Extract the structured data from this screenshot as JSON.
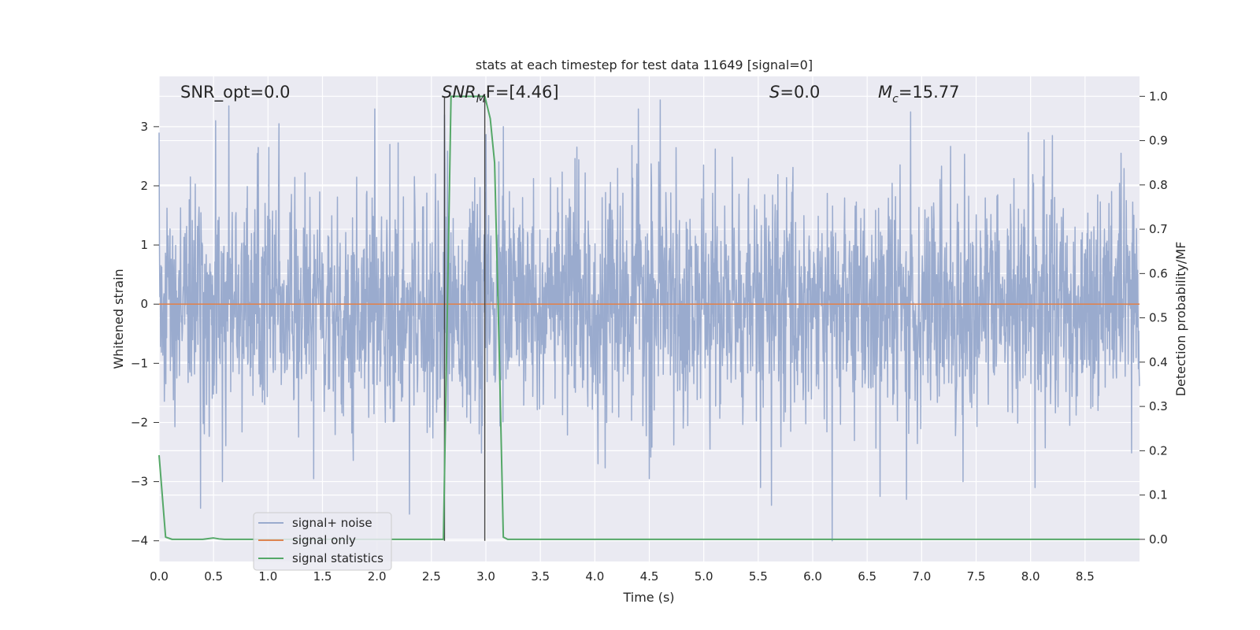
{
  "chart_data": {
    "type": "line",
    "title": "stats at each timestep for test data 11649 [signal=0]",
    "xlabel": "Time (s)",
    "ylabel": "Whitened strain",
    "y2label": "Detection probability/MF",
    "xlim": [
      0,
      9
    ],
    "ylim": [
      -4.35,
      3.85
    ],
    "y2lim": [
      -0.05,
      1.045
    ],
    "x_ticks": [
      0.0,
      0.5,
      1.0,
      1.5,
      2.0,
      2.5,
      3.0,
      3.5,
      4.0,
      4.5,
      5.0,
      5.5,
      6.0,
      6.5,
      7.0,
      7.5,
      8.0,
      8.5
    ],
    "x_tick_labels": [
      "0.0",
      "0.5",
      "1.0",
      "1.5",
      "2.0",
      "2.5",
      "3.0",
      "3.5",
      "4.0",
      "4.5",
      "5.0",
      "5.5",
      "6.0",
      "6.5",
      "7.0",
      "7.5",
      "8.0",
      "8.5"
    ],
    "y_ticks": [
      3,
      2,
      1,
      0,
      -1,
      -2,
      -3,
      -4
    ],
    "y_tick_labels": [
      "3",
      "2",
      "1",
      "0",
      "−1",
      "−2",
      "−3",
      "−4"
    ],
    "y2_ticks": [
      1.0,
      0.9,
      0.8,
      0.7,
      0.6,
      0.5,
      0.4,
      0.3,
      0.2,
      0.1,
      0.0
    ],
    "y2_tick_labels": [
      "1.0",
      "0.9",
      "0.8",
      "0.7",
      "0.6",
      "0.5",
      "0.4",
      "0.3",
      "0.2",
      "0.1",
      "0.0"
    ],
    "grid": true,
    "legend_position": "lower-left",
    "annotations": {
      "snr_opt": "SNR_opt=0.0",
      "snr_mf_main": "SNR",
      "snr_mf_sub": "M",
      "snr_mf_rest": "F=[4.46]",
      "s_main": "S",
      "s_rest": "=0.0",
      "mc_main": "M",
      "mc_sub": "c",
      "mc_rest": "=15.77"
    },
    "vertical_lines_x": [
      2.62,
      2.99
    ],
    "series": [
      {
        "name": "signal+ noise",
        "color": "#9aabce",
        "axis": "left",
        "description_values": "whitened noise, approx. Gaussian sigma 1, x from 0 to 9",
        "peaks": [
          {
            "x": 0.52,
            "y": 3.1
          },
          {
            "x": 0.64,
            "y": 3.35
          },
          {
            "x": 1.1,
            "y": 3.05
          },
          {
            "x": 1.98,
            "y": 3.3
          },
          {
            "x": 2.12,
            "y": 2.7
          },
          {
            "x": 2.62,
            "y": 3.2
          },
          {
            "x": 3.16,
            "y": 3.0
          },
          {
            "x": 4.4,
            "y": 3.3
          },
          {
            "x": 4.6,
            "y": 3.45
          },
          {
            "x": 5.52,
            "y": 3.05
          },
          {
            "x": 5.62,
            "y": 3.0
          },
          {
            "x": 6.9,
            "y": 3.25
          },
          {
            "x": 7.98,
            "y": 2.9
          },
          {
            "x": 8.2,
            "y": 2.85
          }
        ],
        "troughs": [
          {
            "x": 0.38,
            "y": -3.45
          },
          {
            "x": 0.58,
            "y": -3.0
          },
          {
            "x": 2.3,
            "y": -3.55
          },
          {
            "x": 5.52,
            "y": -3.1
          },
          {
            "x": 5.62,
            "y": -3.4
          },
          {
            "x": 6.18,
            "y": -4.0
          },
          {
            "x": 6.62,
            "y": -3.25
          },
          {
            "x": 6.86,
            "y": -3.3
          },
          {
            "x": 8.04,
            "y": -3.1
          },
          {
            "x": 1.42,
            "y": -2.95
          },
          {
            "x": 4.5,
            "y": -2.95
          },
          {
            "x": 7.38,
            "y": -3.0
          }
        ]
      },
      {
        "name": "signal only",
        "color": "#dd8452",
        "axis": "left",
        "x": [
          0,
          9
        ],
        "y": [
          0,
          0
        ]
      },
      {
        "name": "signal statistics",
        "color": "#55a868",
        "axis": "right",
        "x": [
          0.0,
          0.06,
          0.12,
          0.2,
          0.3,
          0.4,
          0.5,
          0.55,
          0.6,
          2.5,
          2.61,
          2.68,
          2.74,
          2.8,
          2.9,
          2.99,
          3.04,
          3.08,
          3.12,
          3.16,
          3.2,
          3.3,
          9.0
        ],
        "y": [
          0.19,
          0.005,
          0.0,
          0.0,
          0.0,
          0.0,
          0.003,
          0.001,
          0.0,
          0.0,
          0.0,
          1.0,
          1.0,
          1.0,
          1.0,
          1.0,
          0.95,
          0.85,
          0.45,
          0.005,
          0.0,
          0.0,
          0.0
        ]
      }
    ]
  }
}
